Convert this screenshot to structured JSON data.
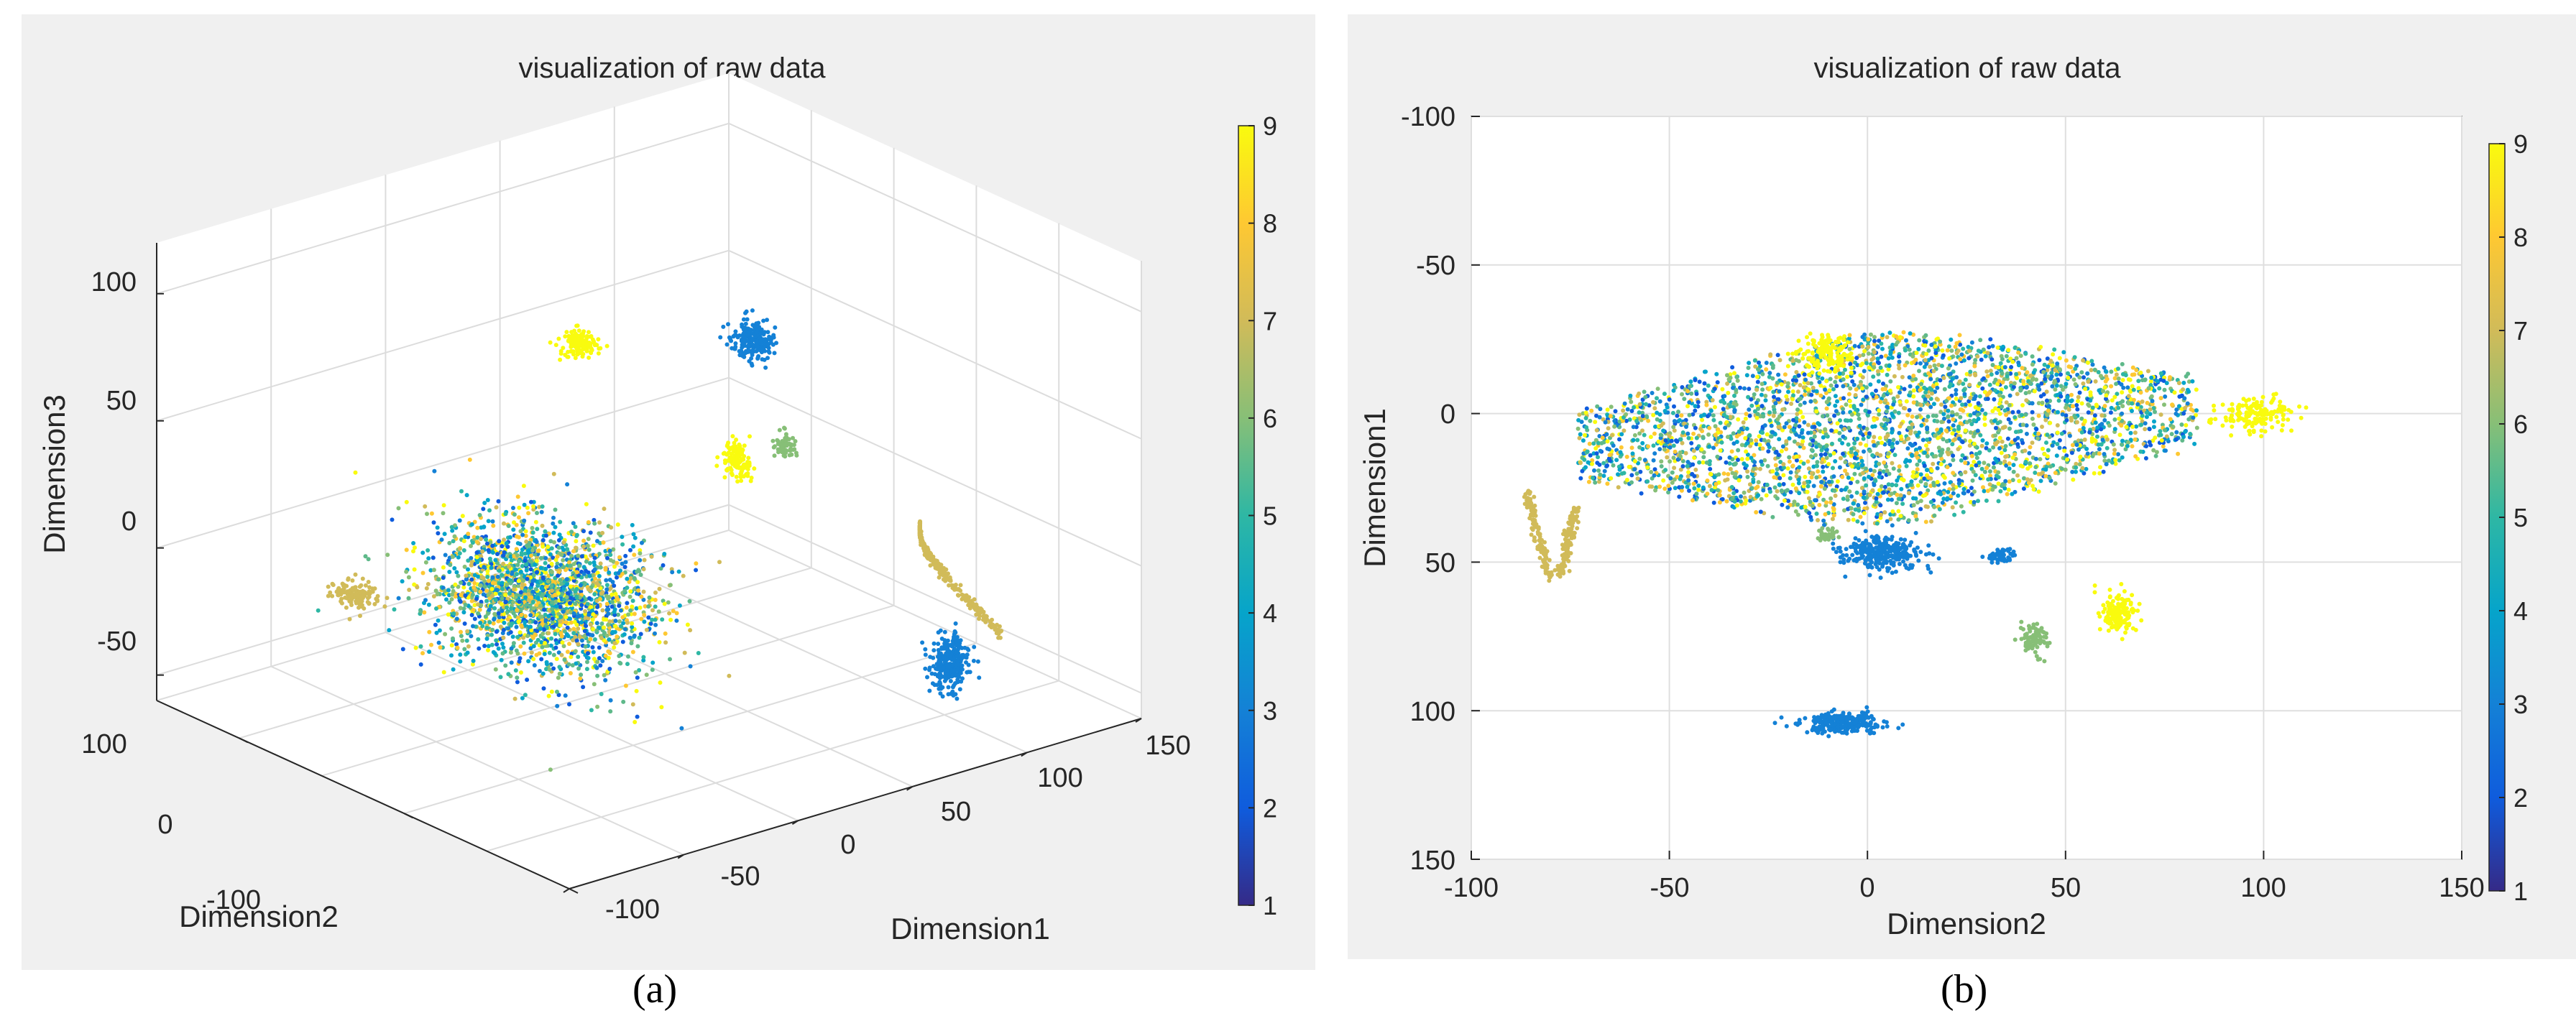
{
  "chart_data": [
    {
      "type": "scatter3d",
      "title": "visualization of raw data",
      "xlabel": "Dimension1",
      "ylabel": "Dimension2",
      "zlabel": "Dimension3",
      "xlim": [
        -100,
        150
      ],
      "ylim": [
        -100,
        150
      ],
      "zlim": [
        -60,
        120
      ],
      "xticks": [
        -100,
        -50,
        0,
        50,
        100,
        150
      ],
      "yticks": [
        -100,
        0,
        100
      ],
      "zticks": [
        -50,
        0,
        50,
        100
      ],
      "grid": true,
      "colorbar": {
        "min": 1,
        "max": 9,
        "ticks": [
          1,
          2,
          3,
          4,
          5,
          6,
          7,
          8,
          9
        ]
      },
      "clusters": [
        {
          "name": "mixed-main",
          "class": "mixed",
          "center": [
            -10,
            40,
            -10
          ],
          "spread": [
            28,
            45,
            22
          ],
          "count": 2200
        },
        {
          "name": "tan-arc",
          "class": 7,
          "shape": "arc",
          "from": [
            98,
            -38,
            12
          ],
          "to": [
            118,
            -60,
            -30
          ],
          "count": 320
        },
        {
          "name": "blue-lower",
          "class": 3,
          "center": [
            110,
            -40,
            -45
          ],
          "spread": [
            6,
            5,
            10
          ],
          "count": 280
        },
        {
          "name": "blue-top",
          "class": 3,
          "center": [
            60,
            10,
            80
          ],
          "spread": [
            6,
            8,
            6
          ],
          "count": 220
        },
        {
          "name": "yellow-top",
          "class": 9,
          "center": [
            20,
            60,
            75
          ],
          "spread": [
            6,
            8,
            4
          ],
          "count": 140
        },
        {
          "name": "yellow-mid",
          "class": 9,
          "center": [
            60,
            20,
            30
          ],
          "spread": [
            4,
            6,
            6
          ],
          "count": 120
        },
        {
          "name": "olive-mid",
          "class": 6,
          "center": [
            70,
            5,
            38
          ],
          "spread": [
            3,
            4,
            4
          ],
          "count": 60
        },
        {
          "name": "tan-left",
          "class": 7,
          "center": [
            -60,
            85,
            -10
          ],
          "spread": [
            6,
            10,
            4
          ],
          "count": 120
        }
      ]
    },
    {
      "type": "scatter",
      "title": "visualization of raw data",
      "xlabel": "Dimension2",
      "ylabel": "Dimension1",
      "xlim": [
        -100,
        150
      ],
      "ylim": [
        -100,
        150
      ],
      "y_reversed": true,
      "xticks": [
        -100,
        -50,
        0,
        50,
        100,
        150
      ],
      "yticks": [
        -100,
        -50,
        0,
        50,
        100,
        150
      ],
      "grid": true,
      "colorbar": {
        "min": 1,
        "max": 9,
        "ticks": [
          1,
          2,
          3,
          4,
          5,
          6,
          7,
          8,
          9
        ]
      },
      "clusters": [
        {
          "name": "mixed-main",
          "class": "mixed",
          "center": [
            5,
            5
          ],
          "spread": [
            68,
            52
          ],
          "shape": "blob",
          "count": 3400
        },
        {
          "name": "tan-line",
          "class": 7,
          "shape": "hook",
          "from": [
            -86,
            27
          ],
          "to": [
            -76,
            56
          ],
          "count": 260
        },
        {
          "name": "blue-mid",
          "class": 3,
          "center": [
            4,
            47
          ],
          "spread": [
            9,
            5
          ],
          "count": 300
        },
        {
          "name": "blue-small",
          "class": 3,
          "center": [
            33,
            48
          ],
          "spread": [
            3,
            2
          ],
          "count": 60
        },
        {
          "name": "blue-bottom",
          "class": 3,
          "center": [
            -6,
            104
          ],
          "spread": [
            9,
            3
          ],
          "count": 260
        },
        {
          "name": "olive-small",
          "class": 6,
          "center": [
            -10,
            41
          ],
          "spread": [
            2,
            2
          ],
          "count": 40
        },
        {
          "name": "yellow-right",
          "class": 9,
          "center": [
            98,
            0
          ],
          "spread": [
            9,
            5
          ],
          "count": 160
        },
        {
          "name": "yellow-lower",
          "class": 9,
          "center": [
            63,
            67
          ],
          "spread": [
            4,
            6
          ],
          "count": 150
        },
        {
          "name": "olive-lower",
          "class": 6,
          "center": [
            42,
            76
          ],
          "spread": [
            3,
            5
          ],
          "count": 80
        },
        {
          "name": "yellow-blob",
          "class": 9,
          "center": [
            -10,
            -20
          ],
          "spread": [
            7,
            6
          ],
          "count": 150
        }
      ]
    }
  ],
  "panel_labels": {
    "a": "(a)",
    "b": "(b)"
  }
}
